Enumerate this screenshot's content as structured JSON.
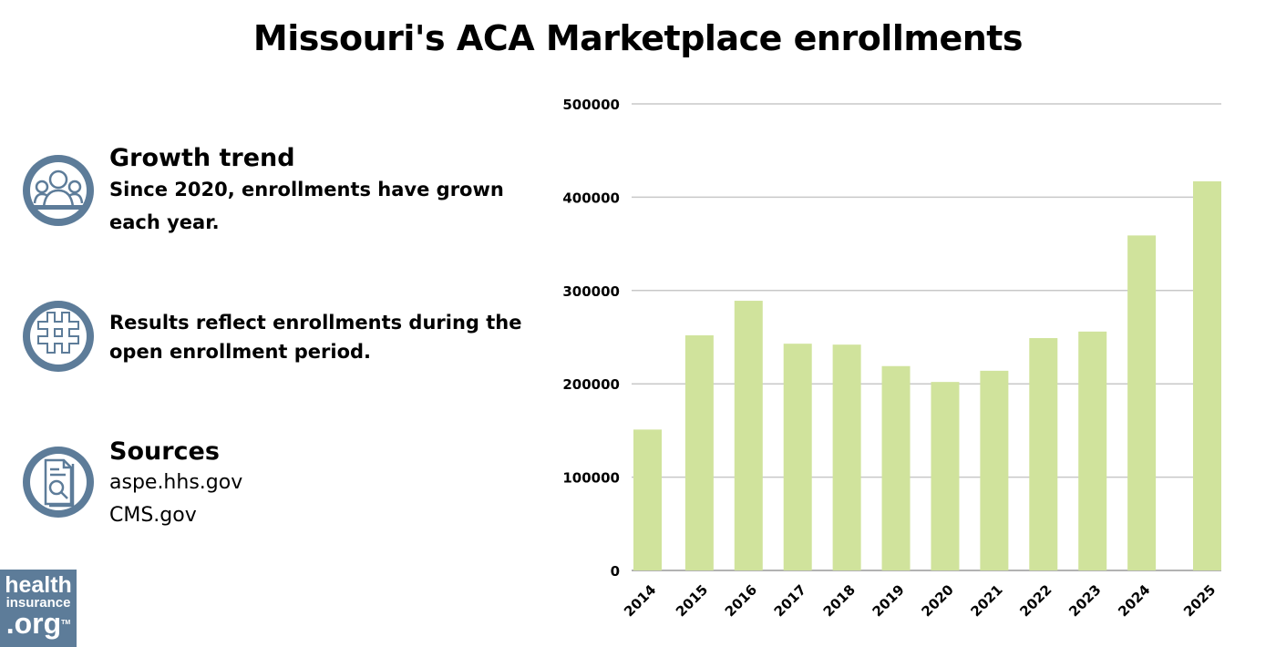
{
  "title": "Missouri's ACA Marketplace enrollments",
  "sidebar": {
    "growth": {
      "icon": "people-group-icon",
      "heading": "Growth trend",
      "text_line1": "Since 2020, enrollments have grown",
      "text_line2": "each year."
    },
    "note": {
      "icon": "hashtag-icon",
      "text_line1": "Results reflect enrollments during the",
      "text_line2": "open enrollment period."
    },
    "sources": {
      "icon": "document-search-icon",
      "heading": "Sources",
      "items": [
        "aspe.hhs.gov",
        "CMS.gov"
      ]
    }
  },
  "logo": {
    "line1": "health",
    "line2": "insurance",
    "line3": ".org",
    "tm": "TM"
  },
  "colors": {
    "bar": "#d0e39c",
    "grid": "#c8c8c8",
    "icon": "#5d7c99"
  },
  "chart_data": {
    "type": "bar",
    "title": "Missouri's ACA Marketplace enrollments",
    "categories": [
      "2014",
      "2015",
      "2016",
      "2017",
      "2018",
      "2019",
      "2020",
      "2021",
      "2022",
      "2023",
      "2024",
      "2025"
    ],
    "values": [
      151000,
      252000,
      289000,
      243000,
      242000,
      219000,
      202000,
      214000,
      249000,
      256000,
      359000,
      417000
    ],
    "ylim": [
      0,
      500000
    ],
    "yticks": [
      0,
      100000,
      200000,
      300000,
      400000,
      500000
    ],
    "grid": true,
    "xlabel": "",
    "ylabel": ""
  }
}
